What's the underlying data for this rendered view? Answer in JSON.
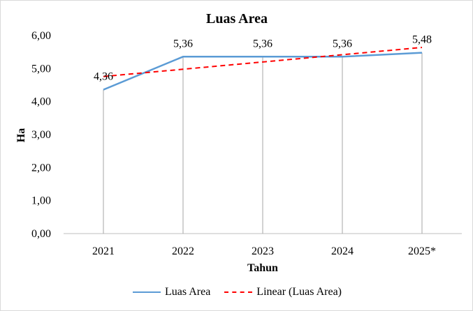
{
  "chart_data": {
    "type": "line",
    "title": "Luas Area",
    "xlabel": "Tahun",
    "ylabel": "Ha",
    "categories": [
      "2021",
      "2022",
      "2023",
      "2024",
      "2025*"
    ],
    "ylim": [
      0,
      6
    ],
    "yticks": [
      "0,00",
      "1,00",
      "2,00",
      "3,00",
      "4,00",
      "5,00",
      "6,00"
    ],
    "series": [
      {
        "name": "Luas Area",
        "values": [
          4.36,
          5.36,
          5.36,
          5.36,
          5.48
        ],
        "labels": [
          "4,36",
          "5,36",
          "5,36",
          "5,36",
          "5,48"
        ],
        "color": "#5b9bd5",
        "style": "solid"
      },
      {
        "name": "Linear (Luas Area)",
        "values": [
          4.76,
          4.98,
          5.2,
          5.42,
          5.64
        ],
        "color": "#ff0000",
        "style": "dashed"
      }
    ],
    "drop_lines": true,
    "grid": false,
    "legend_position": "bottom"
  }
}
